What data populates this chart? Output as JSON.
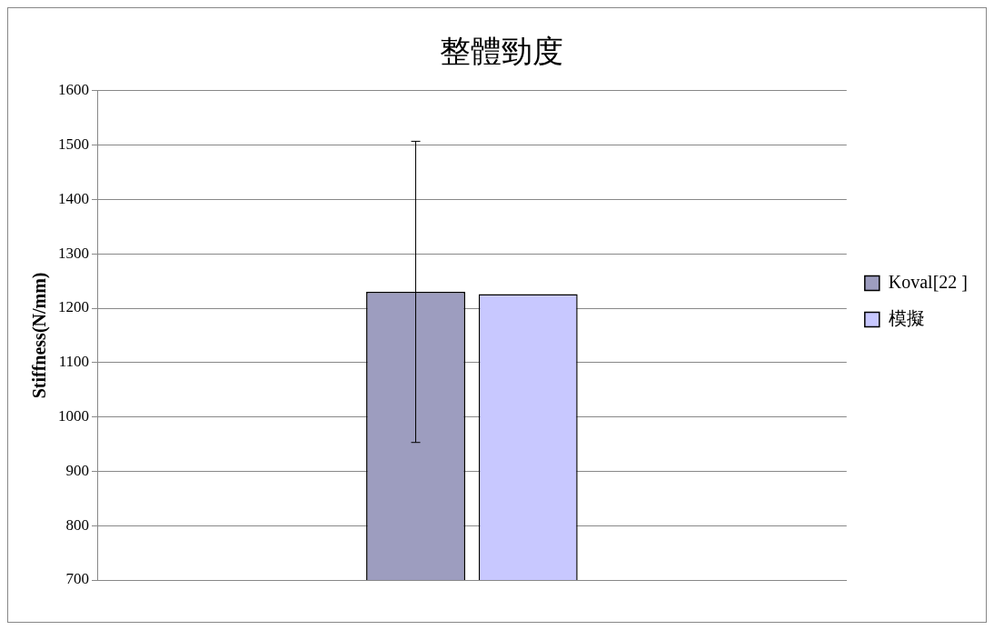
{
  "chart_data": {
    "type": "bar",
    "title": "整體勁度",
    "ylabel": "Stiffness(N/mm)",
    "categories": [
      null
    ],
    "series": [
      {
        "name": "Koval[22 ]",
        "color": "#9d9dbf",
        "values": [
          1230
        ],
        "errors": [
          277
        ]
      },
      {
        "name": "模擬",
        "color": "#c8c8ff",
        "values": [
          1226
        ]
      }
    ],
    "ylim": [
      700,
      1600
    ],
    "yticks": [
      700,
      800,
      900,
      1000,
      1100,
      1200,
      1300,
      1400,
      1500,
      1600
    ],
    "grid": "y",
    "legend": "right",
    "tick_labels": "y"
  }
}
